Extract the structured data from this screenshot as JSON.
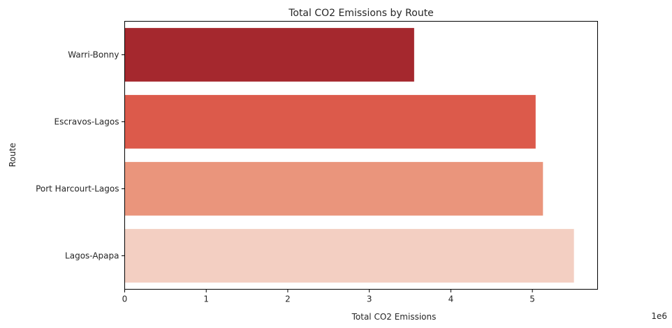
{
  "chart_data": {
    "type": "bar",
    "orientation": "horizontal",
    "title": "Total CO2 Emissions by Route",
    "xlabel": "Total CO2 Emissions",
    "ylabel": "Route",
    "x_offset_text": "1e6",
    "categories": [
      "Warri-Bonny",
      "Escravos-Lagos",
      "Port Harcourt-Lagos",
      "Lagos-Apapa"
    ],
    "values": [
      3550000,
      5040000,
      5130000,
      5510000
    ],
    "colors": [
      "#a5282e",
      "#dc5a4b",
      "#ea957c",
      "#f3cfc2"
    ],
    "xlim": [
      0,
      5800000
    ],
    "xticks": [
      0,
      1000000,
      2000000,
      3000000,
      4000000,
      5000000
    ],
    "xtick_labels": [
      "0",
      "1",
      "2",
      "3",
      "4",
      "5"
    ],
    "grid": false,
    "legend": "none"
  }
}
